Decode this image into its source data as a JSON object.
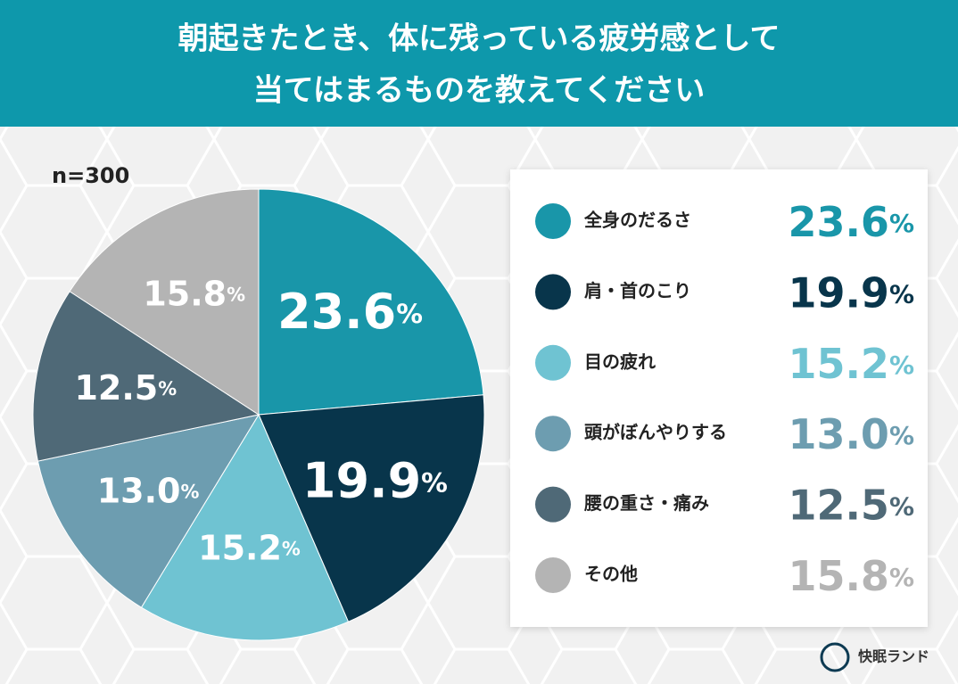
{
  "chart_data": {
    "type": "pie",
    "title": [
      "朝起きたとき、体に残っている疲労感として",
      "当てはまるものを教えてください"
    ],
    "note": "n=300",
    "categories": [
      "全身のだるさ",
      "肩・首のこり",
      "目の疲れ",
      "頭がぼんやりする",
      "腰の重さ・痛み",
      "その他"
    ],
    "values": [
      23.6,
      19.9,
      15.2,
      13.0,
      12.5,
      15.8
    ],
    "value_labels": [
      "23.6%",
      "19.9%",
      "15.2%",
      "13.0%",
      "12.5%",
      "15.8%"
    ],
    "colors": [
      "#1996a9",
      "#08354b",
      "#6fc3d2",
      "#6d9db0",
      "#4f6977",
      "#b4b4b4"
    ],
    "brand": "快眠ランド"
  }
}
